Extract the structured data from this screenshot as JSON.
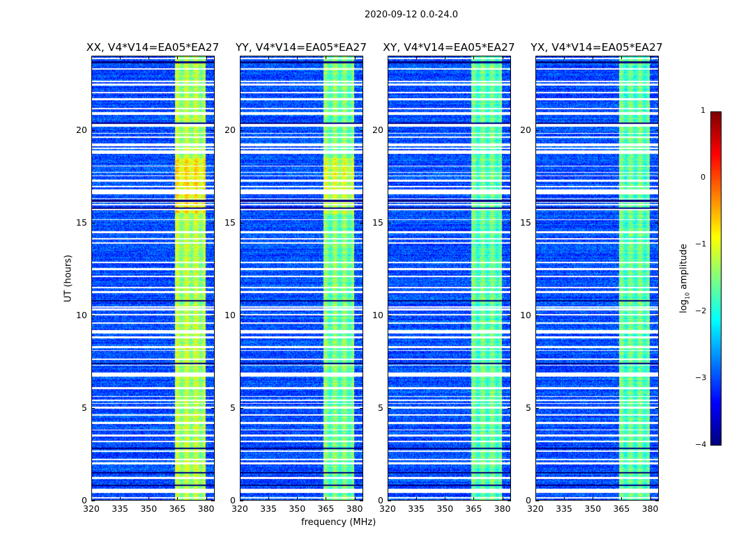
{
  "chart_data": {
    "type": "heatmap",
    "title": "2020-09-12 0.0-24.0",
    "xlabel": "frequency (MHz)",
    "ylabel": "UT (hours)",
    "xlim": [
      320,
      384.5
    ],
    "ylim": [
      0,
      24
    ],
    "xticks": [
      320,
      335,
      350,
      365,
      380
    ],
    "yticks": [
      0,
      5,
      10,
      15,
      20
    ],
    "panels": [
      {
        "title": "XX, V4*V14=EA05*EA27",
        "band_level": -1.3
      },
      {
        "title": "YY, V4*V14=EA05*EA27",
        "band_level": -1.6
      },
      {
        "title": "XY, V4*V14=EA05*EA27",
        "band_level": -1.7
      },
      {
        "title": "YX, V4*V14=EA05*EA27",
        "band_level": -1.7
      }
    ],
    "background_level": -3.0,
    "bright_band_mhz": [
      363.5,
      380
    ],
    "flagged_ut_hours_white": [
      0.5,
      1.2,
      2.0,
      3.5,
      4.2,
      5.0,
      6.8,
      8.3,
      9.1,
      12.5,
      14.5,
      16.7,
      17.3,
      18.8,
      19.2,
      21.7,
      22.5
    ],
    "flagged_ut_hours_black": [
      0.8,
      1.5,
      2.8,
      7.4,
      10.8,
      15.8,
      16.2,
      20.4,
      23.7
    ],
    "colorbar": {
      "label": "log10 amplitude",
      "label_main": "log",
      "label_sub": "10",
      "label_rest": " amplitude",
      "range": [
        -4,
        1
      ],
      "ticks": [
        "1",
        "0",
        "−1",
        "−2",
        "−3",
        "−4"
      ],
      "colormap": "jet"
    }
  }
}
